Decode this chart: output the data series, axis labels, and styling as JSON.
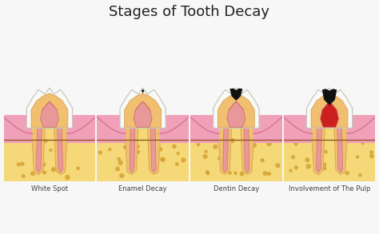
{
  "title": "Stages of Tooth Decay",
  "title_fontsize": 13,
  "background_color": "#f7f7f7",
  "stages": [
    {
      "label": "White Spot",
      "decay_type": "none",
      "pulp_inflamed": false
    },
    {
      "label": "Enamel Decay",
      "decay_type": "small",
      "pulp_inflamed": false
    },
    {
      "label": "Dentin Decay",
      "decay_type": "large",
      "pulp_inflamed": false
    },
    {
      "label": "Involvement of The Pulp",
      "decay_type": "pulp",
      "pulp_inflamed": true
    }
  ],
  "colors": {
    "enamel_fill": "#f9f9f6",
    "enamel_outline": "#c8c8c0",
    "dentin_fill": "#f0c070",
    "dentin_outline": "#d8a050",
    "pulp_fill": "#e89898",
    "pulp_outline": "#cc6666",
    "gum_fill": "#f0a0b8",
    "gum_outline": "#d07090",
    "bone_fill": "#f5d878",
    "bone_dot": "#d4a030",
    "root_fill": "#f0c070",
    "root_outline": "#d8a050",
    "canal_fill": "#e89898",
    "canal_outline": "#cc6666",
    "decay_color": "#111111",
    "inflamed_fill": "#cc2020",
    "brown_line": "#8B5020",
    "label_color": "#444444",
    "label_fontsize": 6.0,
    "bg": "#f7f7f7"
  }
}
